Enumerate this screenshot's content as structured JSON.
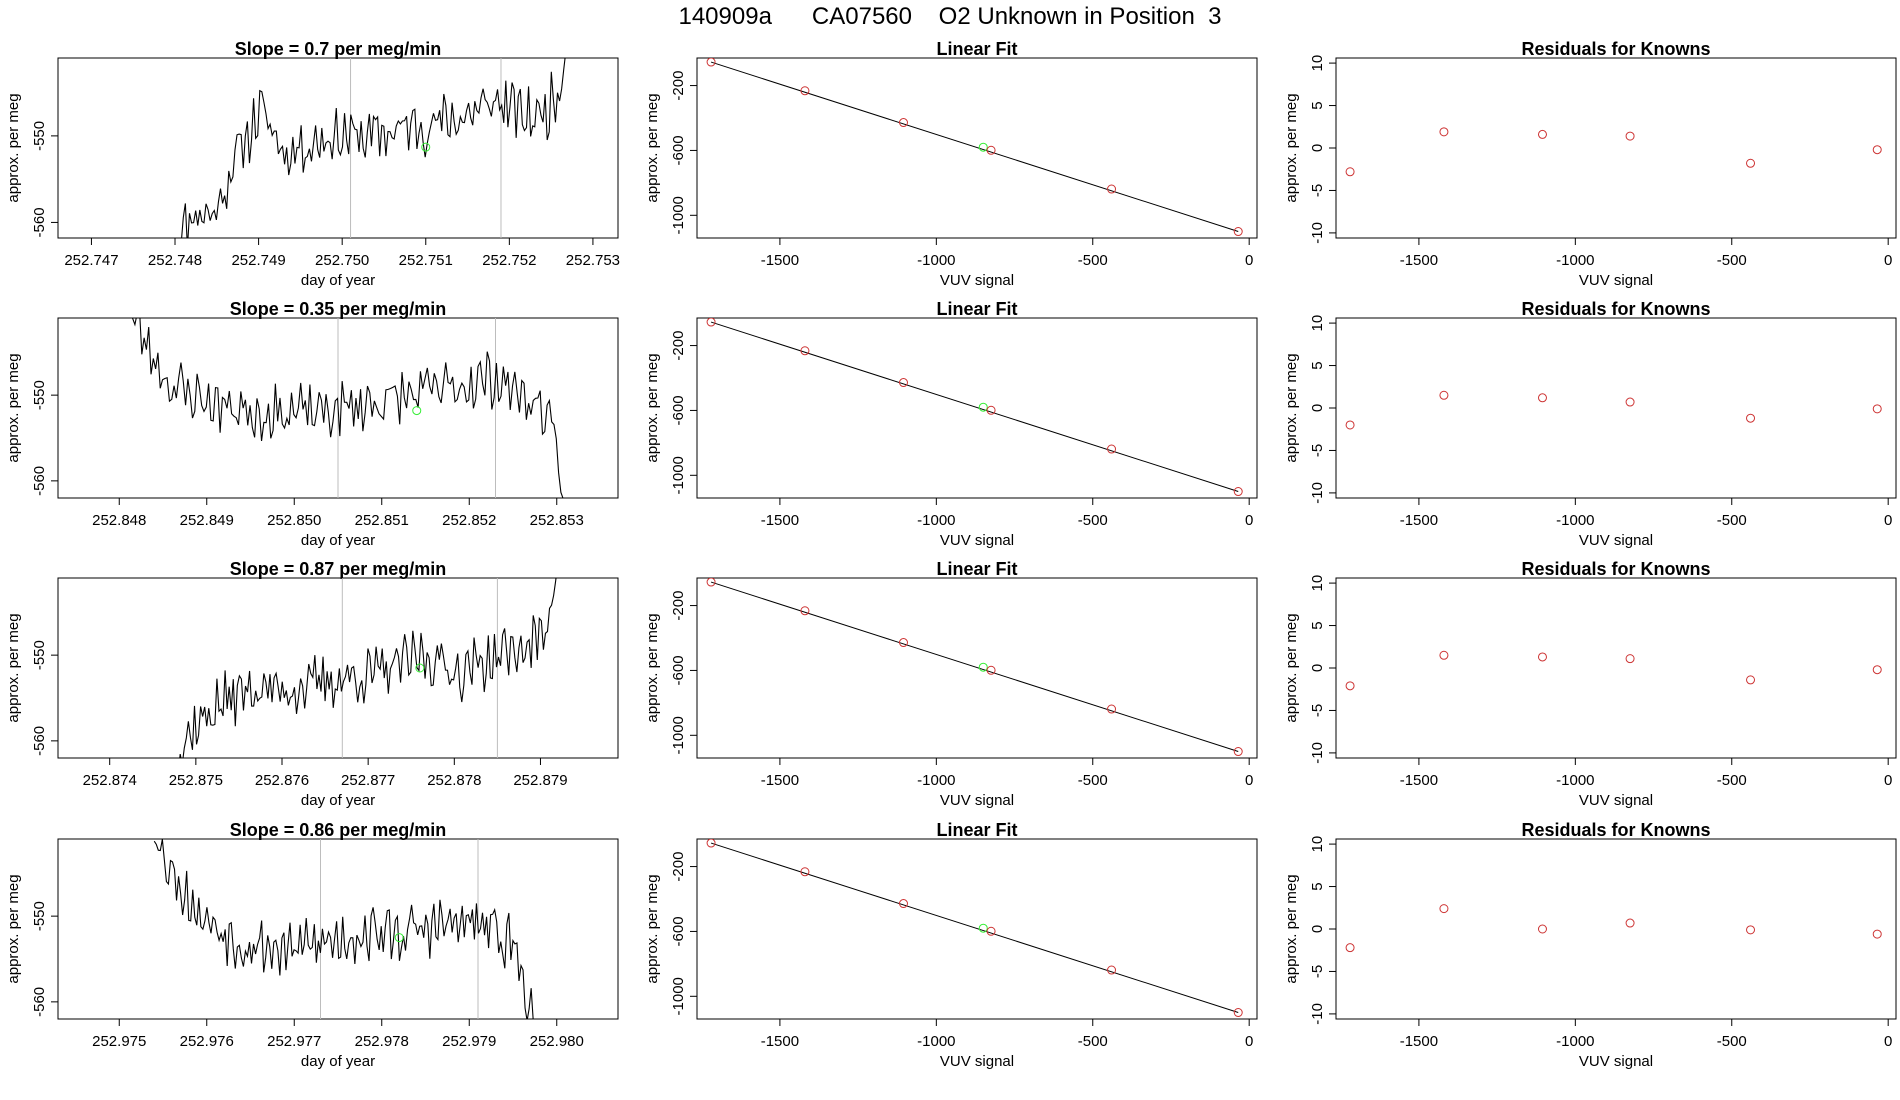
{
  "page_title": "140909a      CA07560    O2 Unknown in Position  3",
  "colors": {
    "line": "#000000",
    "known": "#cd3333",
    "unknown": "#33ee33",
    "marker_line": "#bdbdbd",
    "frame": "#000000"
  },
  "chart_data": [
    {
      "type": "line",
      "row": 1,
      "col": 1,
      "title": "Slope =  0.7  per meg/min",
      "xlabel": "day of year",
      "ylabel": "approx. per meg",
      "xlim": [
        252.7466,
        252.7533
      ],
      "ylim": [
        -561.8,
        -541.0
      ],
      "xticks": [
        252.747,
        252.748,
        252.749,
        252.75,
        252.751,
        252.752,
        252.753
      ],
      "xtick_labels": [
        "252.747",
        "252.748",
        "252.749",
        "252.750",
        "252.751",
        "252.752",
        "252.753"
      ],
      "yticks": [
        -550,
        -560
      ],
      "ytick_labels": [
        "-550",
        "-560"
      ],
      "vlines": [
        252.7501,
        252.7519
      ],
      "unknown_point": {
        "x": 252.751,
        "y": -551.3
      },
      "series": [
        {
          "x0": 252.748,
          "x1": 252.7527,
          "y0": -563.5,
          "y1": -538.0,
          "segments": [
            [
              0,
              -563.5
            ],
            [
              0.04,
              -559
            ],
            [
              0.1,
              -559
            ],
            [
              0.16,
              -552
            ],
            [
              0.22,
              -547
            ],
            [
              0.28,
              -552
            ],
            [
              0.4,
              -550
            ],
            [
              0.5,
              -550
            ],
            [
              0.6,
              -549
            ],
            [
              0.72,
              -548
            ],
            [
              0.82,
              -546
            ],
            [
              0.9,
              -548
            ],
            [
              0.95,
              -547
            ],
            [
              0.985,
              -544
            ],
            [
              1,
              -538
            ]
          ],
          "noise": 2.6,
          "seed": 11
        }
      ]
    },
    {
      "type": "line",
      "row": 2,
      "col": 1,
      "title": "Slope =  0.35  per meg/min",
      "xlabel": "day of year",
      "ylabel": "approx. per meg",
      "xlim": [
        252.8473,
        252.8537
      ],
      "ylim": [
        -562.0,
        -541.0
      ],
      "xticks": [
        252.848,
        252.849,
        252.85,
        252.851,
        252.852,
        252.853
      ],
      "xtick_labels": [
        "252.848",
        "252.849",
        "252.850",
        "252.851",
        "252.852",
        "252.853"
      ],
      "yticks": [
        -550,
        -560
      ],
      "ytick_labels": [
        "-550",
        "-560"
      ],
      "vlines": [
        252.8505,
        252.8523
      ],
      "unknown_point": {
        "x": 252.8514,
        "y": -551.8
      },
      "series": [
        {
          "x0": 252.8481,
          "x1": 252.8531,
          "y0": -540.0,
          "y1": -564.0,
          "segments": [
            [
              0,
              -540
            ],
            [
              0.04,
              -544
            ],
            [
              0.1,
              -549
            ],
            [
              0.2,
              -551
            ],
            [
              0.3,
              -552
            ],
            [
              0.45,
              -552
            ],
            [
              0.55,
              -551
            ],
            [
              0.65,
              -550
            ],
            [
              0.75,
              -549
            ],
            [
              0.84,
              -548
            ],
            [
              0.9,
              -550
            ],
            [
              0.96,
              -552
            ],
            [
              1,
              -564
            ]
          ],
          "noise": 2.6,
          "seed": 23
        }
      ]
    },
    {
      "type": "line",
      "row": 3,
      "col": 1,
      "title": "Slope =  0.87  per meg/min",
      "xlabel": "day of year",
      "ylabel": "approx. per meg",
      "xlim": [
        252.8734,
        252.8799
      ],
      "ylim": [
        -562.0,
        -541.0
      ],
      "xticks": [
        252.874,
        252.875,
        252.876,
        252.877,
        252.878,
        252.879
      ],
      "xtick_labels": [
        "252.874",
        "252.875",
        "252.876",
        "252.877",
        "252.878",
        "252.879"
      ],
      "yticks": [
        -550,
        -560
      ],
      "ytick_labels": [
        "-550",
        "-560"
      ],
      "vlines": [
        252.8767,
        252.8785
      ],
      "unknown_point": {
        "x": 252.8776,
        "y": -551.5
      },
      "series": [
        {
          "x0": 252.8747,
          "x1": 252.8792,
          "y0": -564.0,
          "y1": -540.0,
          "segments": [
            [
              0,
              -564
            ],
            [
              0.05,
              -559
            ],
            [
              0.12,
              -556
            ],
            [
              0.2,
              -554
            ],
            [
              0.3,
              -554
            ],
            [
              0.42,
              -553
            ],
            [
              0.55,
              -552
            ],
            [
              0.65,
              -550
            ],
            [
              0.75,
              -552
            ],
            [
              0.85,
              -550
            ],
            [
              0.93,
              -549
            ],
            [
              0.97,
              -547
            ],
            [
              1,
              -540
            ]
          ],
          "noise": 2.6,
          "seed": 37
        }
      ]
    },
    {
      "type": "line",
      "row": 4,
      "col": 1,
      "title": "Slope =  0.86  per meg/min",
      "xlabel": "day of year",
      "ylabel": "approx. per meg",
      "xlim": [
        252.9743,
        252.9807
      ],
      "ylim": [
        -562.0,
        -541.0
      ],
      "xticks": [
        252.975,
        252.976,
        252.977,
        252.978,
        252.979,
        252.98
      ],
      "xtick_labels": [
        "252.975",
        "252.976",
        "252.977",
        "252.978",
        "252.979",
        "252.980"
      ],
      "yticks": [
        -550,
        -560
      ],
      "ytick_labels": [
        "-550",
        "-560"
      ],
      "vlines": [
        252.9773,
        252.9791
      ],
      "unknown_point": {
        "x": 252.9782,
        "y": -552.5
      },
      "series": [
        {
          "x0": 252.9754,
          "x1": 252.9798,
          "y0": -541.0,
          "y1": -564.0,
          "segments": [
            [
              0,
              -541
            ],
            [
              0.05,
              -545
            ],
            [
              0.12,
              -550
            ],
            [
              0.22,
              -553
            ],
            [
              0.35,
              -554
            ],
            [
              0.45,
              -553
            ],
            [
              0.55,
              -552
            ],
            [
              0.65,
              -552
            ],
            [
              0.75,
              -551
            ],
            [
              0.85,
              -551
            ],
            [
              0.93,
              -553
            ],
            [
              1,
              -564
            ]
          ],
          "noise": 2.6,
          "seed": 53
        }
      ]
    },
    {
      "type": "scatter",
      "row": 1,
      "col": 2,
      "title": "Linear Fit",
      "xlabel": "VUV signal",
      "ylabel": "approx. per meg",
      "xlim": [
        -1765,
        25
      ],
      "ylim": [
        -1140,
        -30
      ],
      "xticks": [
        -1500,
        -1000,
        -500,
        0
      ],
      "xtick_labels": [
        "-1500",
        "-1000",
        "-500",
        "0"
      ],
      "yticks": [
        -200,
        -600,
        -1000
      ],
      "ytick_labels": [
        "-200",
        "-600",
        "-1000"
      ],
      "fit_line": [
        [
          -1720,
          -55
        ],
        [
          -35,
          -1100
        ]
      ],
      "knowns": [
        [
          -1720,
          -55
        ],
        [
          -1420,
          -232
        ],
        [
          -1105,
          -428
        ],
        [
          -825,
          -599
        ],
        [
          -440,
          -838
        ],
        [
          -35,
          -1100
        ]
      ],
      "unknown": [
        -850,
        -580
      ]
    },
    {
      "type": "scatter",
      "row": 2,
      "col": 2,
      "title": "Linear Fit",
      "xlabel": "VUV signal",
      "ylabel": "approx. per meg",
      "xlim": [
        -1765,
        25
      ],
      "ylim": [
        -1140,
        -30
      ],
      "xticks": [
        -1500,
        -1000,
        -500,
        0
      ],
      "xtick_labels": [
        "-1500",
        "-1000",
        "-500",
        "0"
      ],
      "yticks": [
        -200,
        -600,
        -1000
      ],
      "ytick_labels": [
        "-200",
        "-600",
        "-1000"
      ],
      "fit_line": [
        [
          -1720,
          -55
        ],
        [
          -35,
          -1100
        ]
      ],
      "knowns": [
        [
          -1720,
          -55
        ],
        [
          -1420,
          -232
        ],
        [
          -1105,
          -428
        ],
        [
          -825,
          -599
        ],
        [
          -440,
          -838
        ],
        [
          -35,
          -1100
        ]
      ],
      "unknown": [
        -850,
        -580
      ]
    },
    {
      "type": "scatter",
      "row": 3,
      "col": 2,
      "title": "Linear Fit",
      "xlabel": "VUV signal",
      "ylabel": "approx. per meg",
      "xlim": [
        -1765,
        25
      ],
      "ylim": [
        -1140,
        -30
      ],
      "xticks": [
        -1500,
        -1000,
        -500,
        0
      ],
      "xtick_labels": [
        "-1500",
        "-1000",
        "-500",
        "0"
      ],
      "yticks": [
        -200,
        -600,
        -1000
      ],
      "ytick_labels": [
        "-200",
        "-600",
        "-1000"
      ],
      "fit_line": [
        [
          -1720,
          -55
        ],
        [
          -35,
          -1100
        ]
      ],
      "knowns": [
        [
          -1720,
          -55
        ],
        [
          -1420,
          -232
        ],
        [
          -1105,
          -428
        ],
        [
          -825,
          -599
        ],
        [
          -440,
          -838
        ],
        [
          -35,
          -1100
        ]
      ],
      "unknown": [
        -850,
        -580
      ]
    },
    {
      "type": "scatter",
      "row": 4,
      "col": 2,
      "title": "Linear Fit",
      "xlabel": "VUV signal",
      "ylabel": "approx. per meg",
      "xlim": [
        -1765,
        25
      ],
      "ylim": [
        -1140,
        -30
      ],
      "xticks": [
        -1500,
        -1000,
        -500,
        0
      ],
      "xtick_labels": [
        "-1500",
        "-1000",
        "-500",
        "0"
      ],
      "yticks": [
        -200,
        -600,
        -1000
      ],
      "ytick_labels": [
        "-200",
        "-600",
        "-1000"
      ],
      "fit_line": [
        [
          -1720,
          -55
        ],
        [
          -35,
          -1100
        ]
      ],
      "knowns": [
        [
          -1720,
          -55
        ],
        [
          -1420,
          -232
        ],
        [
          -1105,
          -428
        ],
        [
          -825,
          -599
        ],
        [
          -440,
          -838
        ],
        [
          -35,
          -1100
        ]
      ],
      "unknown": [
        -850,
        -580
      ]
    },
    {
      "type": "scatter",
      "row": 1,
      "col": 3,
      "title": "Residuals for Knowns",
      "xlabel": "VUV signal",
      "ylabel": "approx. per meg",
      "xlim": [
        -1765,
        25
      ],
      "ylim": [
        -10.6,
        10.6
      ],
      "xticks": [
        -1500,
        -1000,
        -500,
        0
      ],
      "xtick_labels": [
        "-1500",
        "-1000",
        "-500",
        "0"
      ],
      "yticks": [
        10,
        5,
        0,
        -5,
        -10
      ],
      "ytick_labels": [
        "10",
        "5",
        "0",
        "-5",
        "-10"
      ],
      "knowns": [
        [
          -1720,
          -2.8
        ],
        [
          -1420,
          1.9
        ],
        [
          -1105,
          1.6
        ],
        [
          -825,
          1.4
        ],
        [
          -440,
          -1.8
        ],
        [
          -35,
          -0.2
        ]
      ]
    },
    {
      "type": "scatter",
      "row": 2,
      "col": 3,
      "title": "Residuals for Knowns",
      "xlabel": "VUV signal",
      "ylabel": "approx. per meg",
      "xlim": [
        -1765,
        25
      ],
      "ylim": [
        -10.6,
        10.6
      ],
      "xticks": [
        -1500,
        -1000,
        -500,
        0
      ],
      "xtick_labels": [
        "-1500",
        "-1000",
        "-500",
        "0"
      ],
      "yticks": [
        10,
        5,
        0,
        -5,
        -10
      ],
      "ytick_labels": [
        "10",
        "5",
        "0",
        "-5",
        "-10"
      ],
      "knowns": [
        [
          -1720,
          -2.0
        ],
        [
          -1420,
          1.5
        ],
        [
          -1105,
          1.2
        ],
        [
          -825,
          0.7
        ],
        [
          -440,
          -1.2
        ],
        [
          -35,
          -0.1
        ]
      ]
    },
    {
      "type": "scatter",
      "row": 3,
      "col": 3,
      "title": "Residuals for Knowns",
      "xlabel": "VUV signal",
      "ylabel": "approx. per meg",
      "xlim": [
        -1765,
        25
      ],
      "ylim": [
        -10.6,
        10.6
      ],
      "xticks": [
        -1500,
        -1000,
        -500,
        0
      ],
      "xtick_labels": [
        "-1500",
        "-1000",
        "-500",
        "0"
      ],
      "yticks": [
        10,
        5,
        0,
        -5,
        -10
      ],
      "ytick_labels": [
        "10",
        "5",
        "0",
        "-5",
        "-10"
      ],
      "knowns": [
        [
          -1720,
          -2.1
        ],
        [
          -1420,
          1.5
        ],
        [
          -1105,
          1.3
        ],
        [
          -825,
          1.1
        ],
        [
          -440,
          -1.4
        ],
        [
          -35,
          -0.2
        ]
      ]
    },
    {
      "type": "scatter",
      "row": 4,
      "col": 3,
      "title": "Residuals for Knowns",
      "xlabel": "VUV signal",
      "ylabel": "approx. per meg",
      "xlim": [
        -1765,
        25
      ],
      "ylim": [
        -10.6,
        10.6
      ],
      "xticks": [
        -1500,
        -1000,
        -500,
        0
      ],
      "xtick_labels": [
        "-1500",
        "-1000",
        "-500",
        "0"
      ],
      "yticks": [
        10,
        5,
        0,
        -5,
        -10
      ],
      "ytick_labels": [
        "10",
        "5",
        "0",
        "-5",
        "-10"
      ],
      "knowns": [
        [
          -1720,
          -2.2
        ],
        [
          -1420,
          2.4
        ],
        [
          -1105,
          0.0
        ],
        [
          -825,
          0.7
        ],
        [
          -440,
          -0.1
        ],
        [
          -35,
          -0.6
        ]
      ]
    }
  ]
}
